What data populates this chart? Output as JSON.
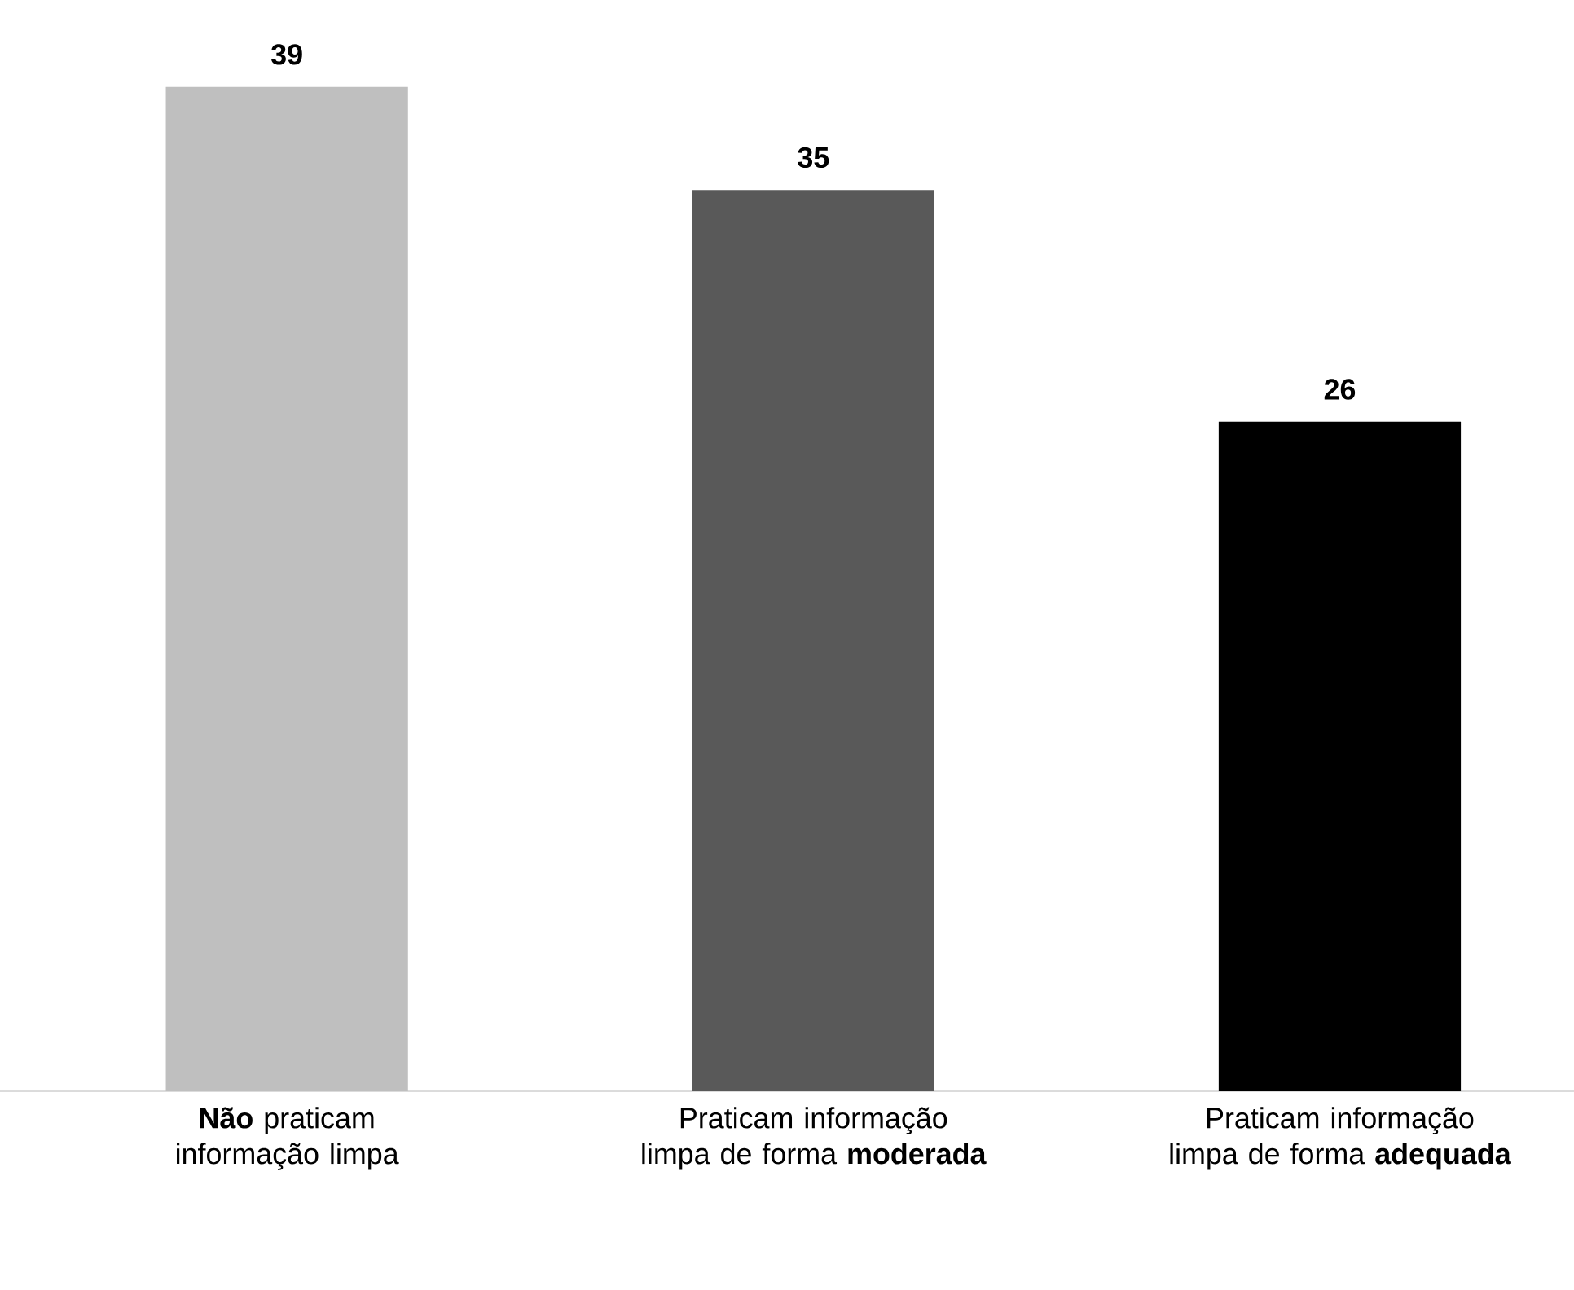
{
  "chart_data": {
    "type": "bar",
    "categories": [
      "**Não** praticam informação limpa",
      "Praticam informação limpa de forma **moderada**",
      "Praticam informação limpa de forma **adequada**"
    ],
    "values": [
      39,
      35,
      26
    ],
    "colors": [
      "#bfbfbf",
      "#595959",
      "#000000"
    ],
    "data_labels": true
  }
}
